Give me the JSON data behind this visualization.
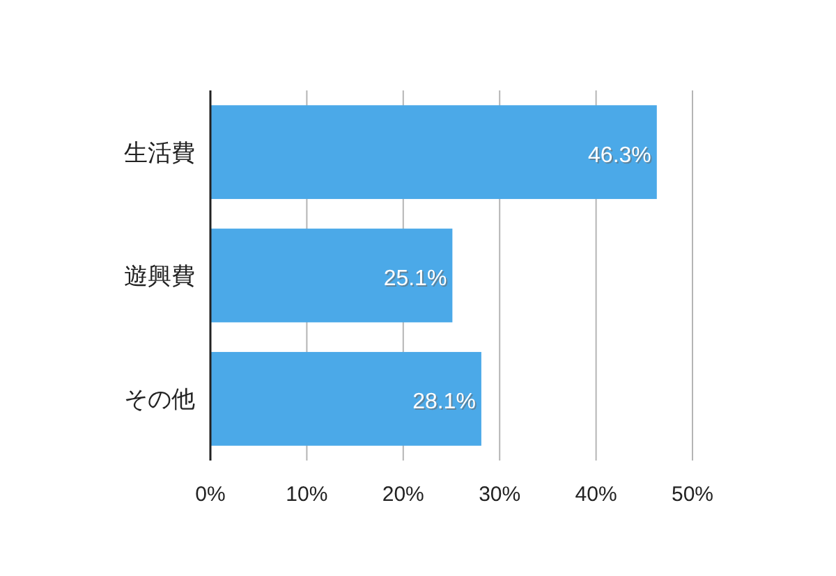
{
  "chart_data": {
    "type": "bar",
    "orientation": "horizontal",
    "categories": [
      "生活費",
      "遊興費",
      "その他"
    ],
    "values": [
      46.3,
      25.1,
      28.1
    ],
    "value_labels": [
      "46.3%",
      "25.1%",
      "28.1%"
    ],
    "color": "#4ba9e8",
    "xlim": [
      0,
      50
    ],
    "xticks": [
      {
        "value": 0,
        "label": "0%"
      },
      {
        "value": 10,
        "label": "10%"
      },
      {
        "value": 20,
        "label": "20%"
      },
      {
        "value": 30,
        "label": "30%"
      },
      {
        "value": 40,
        "label": "40%"
      },
      {
        "value": 50,
        "label": "50%"
      }
    ],
    "grid": "x"
  }
}
